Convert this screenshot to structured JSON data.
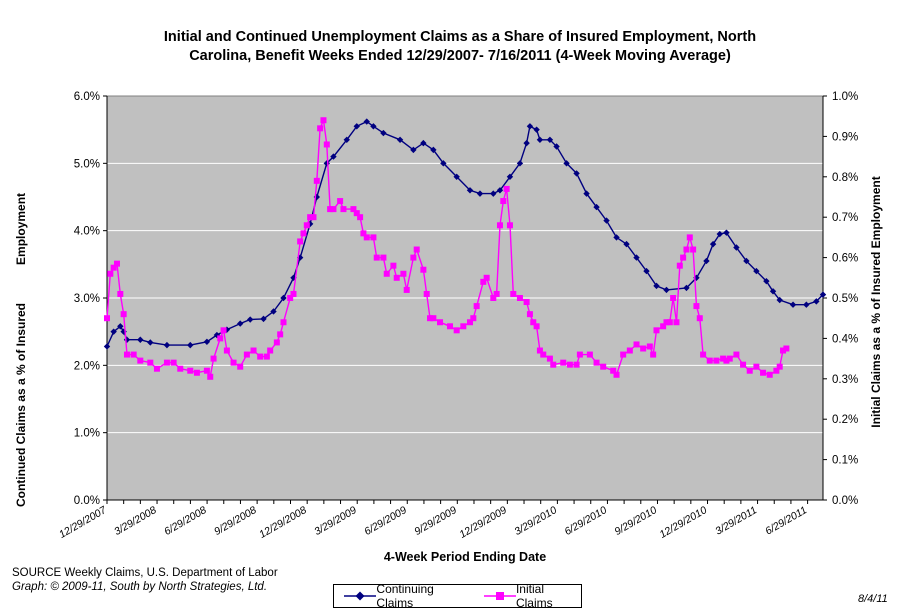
{
  "chart_data": {
    "type": "line",
    "title": "Initial and Continued Unemployment Claims as a Share of Insured Employment, North Carolina, Benefit Weeks Ended 12/29/2007- 7/16/2011 (4-Week Moving Average)",
    "title_lines": [
      "Initial and Continued Unemployment Claims as a Share of Insured Employment, North",
      "Carolina, Benefit Weeks Ended 12/29/2007- 7/16/2011 (4-Week Moving Average)"
    ],
    "xlabel": "4-Week Period Ending Date",
    "ylabel_left": [
      "Continued Claims as a % of Insured",
      "Employment"
    ],
    "ylabel_right": "Initial Claims as a % of Insured Employment",
    "y_left_range": [
      0,
      6
    ],
    "y_right_range": [
      0,
      1
    ],
    "y_left_ticks": [
      "0.0%",
      "1.0%",
      "2.0%",
      "3.0%",
      "4.0%",
      "5.0%",
      "6.0%"
    ],
    "y_right_ticks": [
      "0.0%",
      "0.1%",
      "0.2%",
      "0.3%",
      "0.4%",
      "0.5%",
      "0.6%",
      "0.7%",
      "0.8%",
      "0.9%",
      "1.0%"
    ],
    "x_tick_labels": [
      "12/29/2007",
      "3/29/2008",
      "6/29/2008",
      "9/29/2008",
      "12/29/2008",
      "3/29/2009",
      "6/29/2009",
      "9/29/2009",
      "12/29/2009",
      "3/29/2010",
      "6/29/2010",
      "9/29/2010",
      "12/29/2010",
      "3/29/2011",
      "6/29/2011"
    ],
    "weeks": 186,
    "grid": true,
    "plot_background": "#c0c0c0",
    "series": [
      {
        "name": "Continuing Claims",
        "axis": "left",
        "color": "#000080",
        "marker": "diamond",
        "anchors": [
          [
            0,
            2.28
          ],
          [
            2,
            2.5
          ],
          [
            4,
            2.58
          ],
          [
            5,
            2.5
          ],
          [
            6,
            2.38
          ],
          [
            10,
            2.38
          ],
          [
            13,
            2.34
          ],
          [
            18,
            2.3
          ],
          [
            25,
            2.3
          ],
          [
            30,
            2.35
          ],
          [
            33,
            2.45
          ],
          [
            36,
            2.53
          ],
          [
            40,
            2.62
          ],
          [
            43,
            2.68
          ],
          [
            47,
            2.69
          ],
          [
            50,
            2.8
          ],
          [
            53,
            3.0
          ],
          [
            56,
            3.3
          ],
          [
            58,
            3.6
          ],
          [
            61,
            4.1
          ],
          [
            63,
            4.5
          ],
          [
            66,
            5.0
          ],
          [
            68,
            5.1
          ],
          [
            72,
            5.35
          ],
          [
            75,
            5.55
          ],
          [
            78,
            5.62
          ],
          [
            80,
            5.55
          ],
          [
            83,
            5.45
          ],
          [
            88,
            5.35
          ],
          [
            92,
            5.2
          ],
          [
            95,
            5.3
          ],
          [
            98,
            5.2
          ],
          [
            101,
            5.0
          ],
          [
            105,
            4.8
          ],
          [
            109,
            4.6
          ],
          [
            112,
            4.55
          ],
          [
            116,
            4.55
          ],
          [
            118,
            4.6
          ],
          [
            121,
            4.8
          ],
          [
            124,
            5.0
          ],
          [
            126,
            5.3
          ],
          [
            127,
            5.55
          ],
          [
            129,
            5.5
          ],
          [
            130,
            5.35
          ],
          [
            133,
            5.35
          ],
          [
            135,
            5.25
          ],
          [
            138,
            5.0
          ],
          [
            141,
            4.85
          ],
          [
            144,
            4.55
          ],
          [
            147,
            4.35
          ],
          [
            150,
            4.15
          ],
          [
            153,
            3.9
          ],
          [
            156,
            3.8
          ],
          [
            159,
            3.6
          ],
          [
            162,
            3.4
          ],
          [
            165,
            3.18
          ],
          [
            168,
            3.12
          ],
          [
            174,
            3.15
          ],
          [
            177,
            3.3
          ],
          [
            180,
            3.55
          ],
          [
            182,
            3.8
          ],
          [
            184,
            3.95
          ],
          [
            186,
            3.97
          ],
          [
            189,
            3.75
          ],
          [
            192,
            3.55
          ],
          [
            195,
            3.4
          ],
          [
            198,
            3.25
          ],
          [
            200,
            3.1
          ],
          [
            202,
            2.97
          ],
          [
            206,
            2.9
          ],
          [
            210,
            2.9
          ],
          [
            213,
            2.95
          ],
          [
            215,
            3.05
          ]
        ]
      },
      {
        "name": "Initial Claims",
        "axis": "right",
        "color": "#ff00ff",
        "marker": "square",
        "anchors": [
          [
            0,
            0.45
          ],
          [
            1,
            0.56
          ],
          [
            2,
            0.575
          ],
          [
            3,
            0.585
          ],
          [
            4,
            0.51
          ],
          [
            5,
            0.46
          ],
          [
            6,
            0.36
          ],
          [
            8,
            0.36
          ],
          [
            10,
            0.345
          ],
          [
            13,
            0.34
          ],
          [
            15,
            0.325
          ],
          [
            18,
            0.34
          ],
          [
            20,
            0.34
          ],
          [
            22,
            0.325
          ],
          [
            25,
            0.32
          ],
          [
            27,
            0.315
          ],
          [
            30,
            0.32
          ],
          [
            31,
            0.305
          ],
          [
            32,
            0.35
          ],
          [
            34,
            0.4
          ],
          [
            35,
            0.42
          ],
          [
            36,
            0.37
          ],
          [
            38,
            0.34
          ],
          [
            40,
            0.33
          ],
          [
            42,
            0.36
          ],
          [
            44,
            0.37
          ],
          [
            46,
            0.355
          ],
          [
            48,
            0.355
          ],
          [
            49,
            0.37
          ],
          [
            51,
            0.39
          ],
          [
            52,
            0.41
          ],
          [
            53,
            0.44
          ],
          [
            55,
            0.5
          ],
          [
            56,
            0.51
          ],
          [
            58,
            0.64
          ],
          [
            59,
            0.66
          ],
          [
            60,
            0.68
          ],
          [
            61,
            0.7
          ],
          [
            62,
            0.7
          ],
          [
            63,
            0.79
          ],
          [
            64,
            0.92
          ],
          [
            65,
            0.94
          ],
          [
            66,
            0.88
          ],
          [
            67,
            0.72
          ],
          [
            68,
            0.72
          ],
          [
            70,
            0.74
          ],
          [
            71,
            0.72
          ],
          [
            74,
            0.72
          ],
          [
            75,
            0.71
          ],
          [
            76,
            0.7
          ],
          [
            77,
            0.66
          ],
          [
            78,
            0.65
          ],
          [
            80,
            0.65
          ],
          [
            81,
            0.6
          ],
          [
            83,
            0.6
          ],
          [
            84,
            0.56
          ],
          [
            86,
            0.58
          ],
          [
            87,
            0.55
          ],
          [
            89,
            0.56
          ],
          [
            90,
            0.52
          ],
          [
            92,
            0.6
          ],
          [
            93,
            0.62
          ],
          [
            95,
            0.57
          ],
          [
            96,
            0.51
          ],
          [
            97,
            0.45
          ],
          [
            98,
            0.45
          ],
          [
            100,
            0.44
          ],
          [
            103,
            0.43
          ],
          [
            105,
            0.42
          ],
          [
            107,
            0.43
          ],
          [
            109,
            0.44
          ],
          [
            110,
            0.45
          ],
          [
            111,
            0.48
          ],
          [
            113,
            0.54
          ],
          [
            114,
            0.55
          ],
          [
            116,
            0.5
          ],
          [
            117,
            0.51
          ],
          [
            118,
            0.68
          ],
          [
            119,
            0.74
          ],
          [
            120,
            0.77
          ],
          [
            121,
            0.68
          ],
          [
            122,
            0.51
          ],
          [
            124,
            0.5
          ],
          [
            126,
            0.49
          ],
          [
            127,
            0.46
          ],
          [
            128,
            0.44
          ],
          [
            129,
            0.43
          ],
          [
            130,
            0.37
          ],
          [
            131,
            0.36
          ],
          [
            133,
            0.35
          ],
          [
            134,
            0.335
          ],
          [
            137,
            0.34
          ],
          [
            139,
            0.335
          ],
          [
            141,
            0.335
          ],
          [
            142,
            0.36
          ],
          [
            145,
            0.36
          ],
          [
            147,
            0.34
          ],
          [
            149,
            0.33
          ],
          [
            152,
            0.32
          ],
          [
            153,
            0.31
          ],
          [
            155,
            0.36
          ],
          [
            157,
            0.37
          ],
          [
            159,
            0.385
          ],
          [
            161,
            0.375
          ],
          [
            163,
            0.38
          ],
          [
            164,
            0.36
          ],
          [
            165,
            0.42
          ],
          [
            167,
            0.43
          ],
          [
            168,
            0.44
          ],
          [
            169,
            0.44
          ],
          [
            170,
            0.5
          ],
          [
            171,
            0.44
          ],
          [
            172,
            0.58
          ],
          [
            173,
            0.6
          ],
          [
            174,
            0.62
          ],
          [
            175,
            0.65
          ],
          [
            176,
            0.62
          ],
          [
            177,
            0.48
          ],
          [
            178,
            0.45
          ],
          [
            179,
            0.36
          ],
          [
            181,
            0.345
          ],
          [
            183,
            0.345
          ],
          [
            185,
            0.35
          ],
          [
            186,
            0.345
          ],
          [
            187,
            0.35
          ],
          [
            189,
            0.36
          ],
          [
            191,
            0.335
          ],
          [
            193,
            0.32
          ],
          [
            195,
            0.33
          ],
          [
            197,
            0.315
          ],
          [
            199,
            0.31
          ],
          [
            201,
            0.32
          ],
          [
            202,
            0.33
          ],
          [
            203,
            0.37
          ],
          [
            204,
            0.375
          ]
        ]
      }
    ]
  },
  "source": {
    "line1": "SOURCE  Weekly Claims, U.S. Department of Labor",
    "line2": "Graph: © 2009-11, South by North Strategies, Ltd."
  },
  "date_stamp": "8/4/11",
  "legend": {
    "continuing": "Continuing Claims",
    "initial": "Initial Claims"
  }
}
